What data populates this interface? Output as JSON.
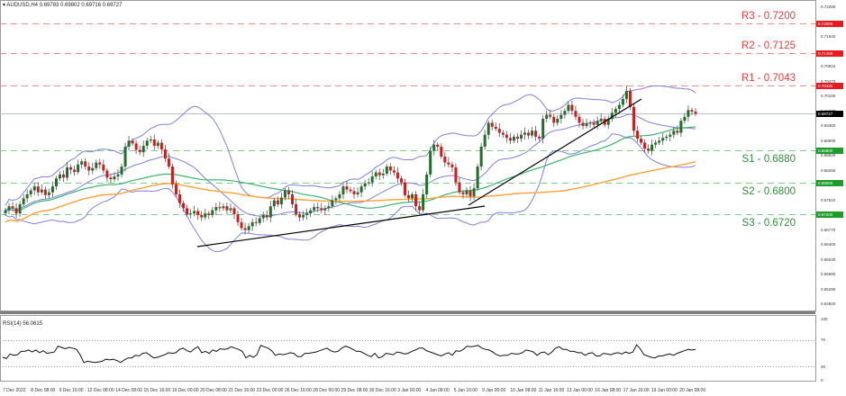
{
  "header": {
    "symbol_line": "▾ AUDUSD,H4  0.69783 0.69802 0.69716 0.69727"
  },
  "rsi_header": "RSI(14) 56.0615",
  "levels": [
    {
      "label": "R3 - 0.7200",
      "price": 0.72,
      "type": "resistance",
      "color": "#ee3b3b",
      "tag": "0.72000"
    },
    {
      "label": "R2 - 0.7125",
      "price": 0.7125,
      "type": "resistance",
      "color": "#ee3b3b",
      "tag": "0.71250"
    },
    {
      "label": "R1 - 0.7043",
      "price": 0.7043,
      "type": "resistance",
      "color": "#ee3b3b",
      "tag": "0.70430"
    },
    {
      "label": "S1 - 0.6880",
      "price": 0.688,
      "type": "support",
      "color": "#2e8b3a",
      "tag": "0.68800"
    },
    {
      "label": "S2 - 0.6800",
      "price": 0.68,
      "type": "support",
      "color": "#2e8b3a",
      "tag": "0.68000"
    },
    {
      "label": "S3 - 0.6720",
      "price": 0.672,
      "type": "support",
      "color": "#2e8b3a",
      "tag": "0.67200"
    }
  ],
  "current_price_tag": "0.69727",
  "y_axis_ticks": [
    "0.72280",
    "0.71910",
    "0.71540",
    "0.71170",
    "0.70810",
    "0.70470",
    "0.70100",
    "0.69730",
    "0.69360",
    "0.68990",
    "0.68620",
    "0.68250",
    "0.67880",
    "0.67510",
    "0.67140",
    "0.66770",
    "0.66400",
    "0.66030",
    "0.65660",
    "0.65290",
    "0.64920"
  ],
  "rsi_axis_ticks": [
    "100",
    "70",
    "30",
    "0"
  ],
  "x_axis_ticks": [
    "7 Dec 2022",
    "8 Dec 08:00",
    "9 Dec 16:00",
    "12 Dec 08:00",
    "14 Dec 08:00",
    "15 Dec 16:00",
    "19 Dec 00:00",
    "20 Dec 08:00",
    "21 Dec 16:00",
    "23 Dec 00:00",
    "26 Dec 16:00",
    "28 Dec 00:00",
    "29 Dec 08:00",
    "30 Dec 16:00",
    "3 Jan 00:00",
    "4 Jan 08:00",
    "5 Jan 16:00",
    "9 Jan 00:00",
    "10 Jan 08:00",
    "11 Jan 16:00",
    "13 Jan 00:00",
    "16 Jan 08:00",
    "17 Jan 16:00",
    "19 Jan 00:00",
    "20 Jan 08:00"
  ],
  "colors": {
    "bull": "#1f6f2a",
    "bear": "#d01c1c",
    "bollinger": "#7f7fe0",
    "ma_green": "#3cb371",
    "ma_orange": "#ffa033",
    "trendline": "#000000",
    "grid_axis": "#9a9a9a"
  },
  "chart_data": {
    "type": "candlestick",
    "title": "AUDUSD, H4",
    "ohlc_last": {
      "open": 0.69783,
      "high": 0.69802,
      "low": 0.69716,
      "close": 0.69727
    },
    "ylim": [
      0.645,
      0.723
    ],
    "x_range": [
      "7 Dec 2022",
      "20 Jan 2023"
    ],
    "support_resistance": {
      "R3": 0.72,
      "R2": 0.7125,
      "R1": 0.7043,
      "S1": 0.688,
      "S2": 0.68,
      "S3": 0.672
    },
    "candles_close_approx": [
      0.673,
      0.674,
      0.6735,
      0.6722,
      0.6745,
      0.676,
      0.677,
      0.678,
      0.679,
      0.6775,
      0.6782,
      0.6768,
      0.6775,
      0.679,
      0.681,
      0.682,
      0.6812,
      0.6838,
      0.6832,
      0.6826,
      0.6845,
      0.6853,
      0.684,
      0.683,
      0.6836,
      0.685,
      0.6845,
      0.683,
      0.6812,
      0.6808,
      0.6815,
      0.682,
      0.684,
      0.689,
      0.6905,
      0.6898,
      0.6882,
      0.6876,
      0.6892,
      0.6905,
      0.6908,
      0.6892,
      0.69,
      0.6883,
      0.686,
      0.684,
      0.6795,
      0.677,
      0.6748,
      0.6735,
      0.672,
      0.6722,
      0.6728,
      0.6718,
      0.6712,
      0.6722,
      0.6718,
      0.673,
      0.6738,
      0.6735,
      0.674,
      0.673,
      0.6735,
      0.672,
      0.67,
      0.6685,
      0.668,
      0.669,
      0.67,
      0.6698,
      0.671,
      0.6718,
      0.6712,
      0.674,
      0.6755,
      0.6745,
      0.6762,
      0.678,
      0.677,
      0.6745,
      0.672,
      0.6712,
      0.6718,
      0.6722,
      0.673,
      0.6738,
      0.6735,
      0.673,
      0.6735,
      0.674,
      0.6755,
      0.676,
      0.677,
      0.679,
      0.6782,
      0.6778,
      0.677,
      0.6775,
      0.679,
      0.6798,
      0.68,
      0.6815,
      0.6825,
      0.6818,
      0.6822,
      0.684,
      0.683,
      0.6825,
      0.681,
      0.68,
      0.6768,
      0.676,
      0.677,
      0.674,
      0.673,
      0.677,
      0.682,
      0.688,
      0.6895,
      0.689,
      0.6865,
      0.685,
      0.6845,
      0.6838,
      0.68,
      0.6775,
      0.677,
      0.678,
      0.6765,
      0.6785,
      0.684,
      0.689,
      0.692,
      0.695,
      0.694,
      0.6935,
      0.6925,
      0.692,
      0.6912,
      0.6905,
      0.6915,
      0.691,
      0.692,
      0.6925,
      0.6918,
      0.693,
      0.6915,
      0.691,
      0.696,
      0.697,
      0.6965,
      0.695,
      0.696,
      0.697,
      0.698,
      0.6995,
      0.698,
      0.6965,
      0.695,
      0.6942,
      0.6948,
      0.695,
      0.6945,
      0.6955,
      0.696,
      0.6945,
      0.696,
      0.6975,
      0.6985,
      0.6995,
      0.701,
      0.703,
      0.699,
      0.693,
      0.691,
      0.69,
      0.6885,
      0.688,
      0.6895,
      0.69,
      0.6905,
      0.6912,
      0.6915,
      0.692,
      0.693,
      0.6925,
      0.6955,
      0.6965,
      0.6982,
      0.6978,
      0.69727
    ],
    "indicators": [
      {
        "name": "Bollinger Bands (20,2)",
        "color": "#7f7fe0"
      },
      {
        "name": "MA (green)",
        "color": "#3cb371"
      },
      {
        "name": "MA (orange)",
        "color": "#ffa033"
      }
    ],
    "trendlines": [
      {
        "from": [
          "19 Dec",
          0.67
        ],
        "to": [
          "5 Jan",
          0.675
        ]
      },
      {
        "from": [
          "5 Jan",
          0.675
        ],
        "to": [
          "17 Jan",
          0.701
        ]
      }
    ],
    "rsi": {
      "period": 14,
      "value": 56.0615,
      "levels": [
        70,
        30
      ],
      "values": [
        44,
        42,
        49,
        47,
        48,
        53,
        53,
        55,
        52,
        55,
        51,
        54,
        50,
        51,
        52,
        61,
        59,
        57,
        59,
        58,
        56,
        48,
        36,
        38,
        37,
        36,
        37,
        38,
        41,
        40,
        41,
        39,
        36,
        40,
        43,
        43,
        47,
        46,
        50,
        51,
        47,
        43,
        44,
        46,
        48,
        51,
        50,
        51,
        56,
        58,
        54,
        52,
        57,
        60,
        51,
        53,
        50,
        55,
        53,
        57,
        56,
        57,
        60,
        58,
        56,
        53,
        43,
        47,
        44,
        48,
        62,
        60,
        58,
        54,
        47,
        49,
        48,
        49,
        51,
        50,
        45,
        45,
        50,
        50,
        51,
        52,
        54,
        56,
        58,
        54,
        52,
        53,
        58,
        61,
        59,
        56,
        53,
        53,
        50,
        47,
        45,
        50,
        43,
        45,
        50,
        49,
        48,
        52,
        51,
        49,
        50,
        53,
        55,
        58,
        58,
        54,
        52,
        50,
        48,
        46,
        49,
        51,
        47,
        54,
        53,
        56,
        61,
        60,
        61,
        62,
        58,
        56,
        55,
        52,
        48,
        46,
        47,
        47,
        50,
        49,
        49,
        51,
        55,
        54,
        52,
        47,
        51,
        52,
        48,
        52,
        58,
        60,
        56,
        56,
        53,
        53,
        51,
        51,
        47,
        50,
        51,
        46,
        46,
        50,
        49,
        48,
        50,
        51,
        49,
        52,
        50,
        52,
        63,
        57,
        48,
        46,
        44,
        43,
        46,
        46,
        48,
        49,
        47,
        50,
        52,
        54,
        56,
        55,
        56
      ]
    }
  }
}
